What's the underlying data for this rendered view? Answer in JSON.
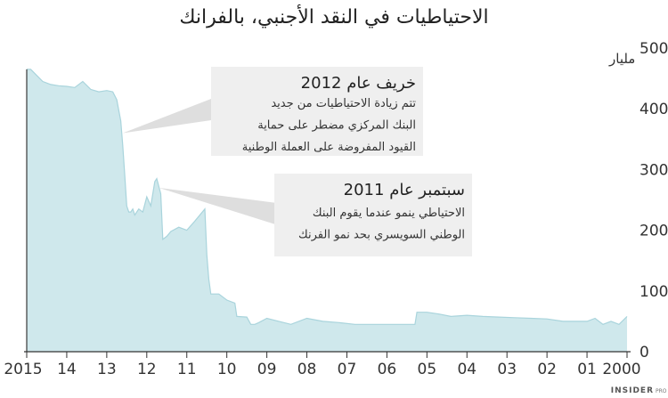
{
  "chart_data": {
    "type": "area",
    "title": "الاحتياطيات في النقد الأجنبي، بالفرانك",
    "unit_label": "مليار",
    "xlabel": "",
    "ylabel": "",
    "ylim": [
      0,
      500
    ],
    "yticks": [
      "0",
      "100",
      "200",
      "300",
      "400",
      "500"
    ],
    "xticks": [
      {
        "year": 2015,
        "label": "2015"
      },
      {
        "year": 2014,
        "label": "14"
      },
      {
        "year": 2013,
        "label": "13"
      },
      {
        "year": 2012,
        "label": "12"
      },
      {
        "year": 2011,
        "label": "11"
      },
      {
        "year": 2010,
        "label": "10"
      },
      {
        "year": 2009,
        "label": "09"
      },
      {
        "year": 2008,
        "label": "08"
      },
      {
        "year": 2007,
        "label": "07"
      },
      {
        "year": 2006,
        "label": "06"
      },
      {
        "year": 2005,
        "label": "05"
      },
      {
        "year": 2004,
        "label": "04"
      },
      {
        "year": 2003,
        "label": "03"
      },
      {
        "year": 2002,
        "label": "02"
      },
      {
        "year": 2001,
        "label": "01"
      },
      {
        "year": 2000,
        "label": "2000"
      }
    ],
    "x_axis_direction": "reversed (2015 on left, 2000 on right)",
    "grid": false,
    "fill_color": "#cfe8ec",
    "line_color": "#a9d4dc",
    "series": [
      {
        "x": [
          2015.0,
          2014.9,
          2014.75,
          2014.6,
          2014.4,
          2014.2,
          2014.0,
          2013.8,
          2013.6,
          2013.4,
          2013.2,
          2013.0,
          2012.85,
          2012.75,
          2012.65,
          2012.6,
          2012.55,
          2012.5,
          2012.45,
          2012.4,
          2012.35,
          2012.3,
          2012.2,
          2012.1,
          2012.0,
          2011.9,
          2011.8,
          2011.75,
          2011.65,
          2011.6,
          2011.5,
          2011.4,
          2011.2,
          2011.0,
          2010.8,
          2010.55,
          2010.5,
          2010.45,
          2010.4,
          2010.2,
          2010.0,
          2009.8,
          2009.75,
          2009.5,
          2009.4,
          2009.3,
          2009.2,
          2009.0,
          2008.7,
          2008.4,
          2008.0,
          2007.6,
          2007.2,
          2006.8,
          2006.4,
          2006.0,
          2005.6,
          2005.3,
          2005.25,
          2005.0,
          2004.7,
          2004.4,
          2004.0,
          2003.6,
          2003.2,
          2002.8,
          2002.4,
          2002.0,
          2001.6,
          2001.3,
          2001.0,
          2000.8,
          2000.6,
          2000.4,
          2000.2,
          2000.0
        ],
        "y": [
          465,
          465,
          455,
          445,
          440,
          438,
          437,
          435,
          445,
          432,
          428,
          430,
          428,
          415,
          380,
          340,
          290,
          240,
          230,
          230,
          235,
          225,
          235,
          230,
          255,
          240,
          280,
          285,
          260,
          185,
          190,
          198,
          205,
          200,
          215,
          235,
          160,
          120,
          95,
          95,
          85,
          80,
          58,
          57,
          45,
          45,
          48,
          55,
          50,
          45,
          55,
          50,
          48,
          45,
          45,
          45,
          45,
          45,
          65,
          65,
          62,
          58,
          60,
          58,
          57,
          56,
          55,
          54,
          50,
          50,
          50,
          55,
          45,
          50,
          45,
          58
        ]
      }
    ],
    "annotations": [
      {
        "title": "خريف عام 2012",
        "lines": [
          "تتم زيادة الاحتياطيات  من جديد",
          "البنك المركزي مضطر على حماية",
          "القيود المفروضة على العملة الوطنية"
        ],
        "points_to_year": 2012.6,
        "points_to_value": 360
      },
      {
        "title": "سبتمبر عام 2011",
        "lines": [
          "الاحتياطي ينمو عندما يقوم البنك",
          "الوطني السويسري بحد نمو الفرنك"
        ],
        "points_to_year": 2011.7,
        "points_to_value": 270
      }
    ]
  },
  "footer": {
    "brand": "INSIDER",
    "brand_sub": "PRO"
  }
}
